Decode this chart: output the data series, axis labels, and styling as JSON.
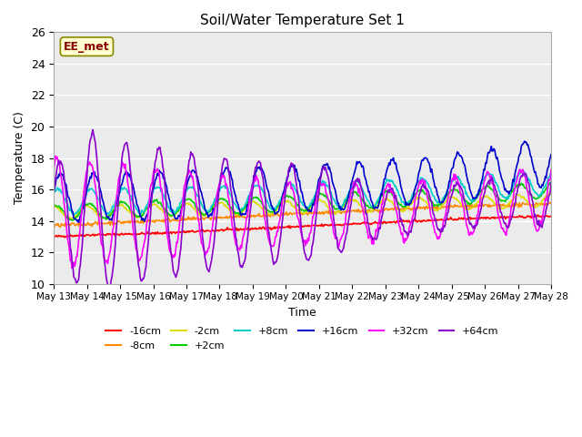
{
  "title": "Soil/Water Temperature Set 1",
  "xlabel": "Time",
  "ylabel": "Temperature (C)",
  "ylim": [
    10,
    26
  ],
  "yticks": [
    10,
    12,
    14,
    16,
    18,
    20,
    22,
    24,
    26
  ],
  "x_tick_labels": [
    "May 13",
    "May 14",
    "May 15",
    "May 16",
    "May 17",
    "May 18",
    "May 19",
    "May 20",
    "May 21",
    "May 22",
    "May 23",
    "May 24",
    "May 25",
    "May 26",
    "May 27",
    "May 28"
  ],
  "legend_entries": [
    {
      "label": "-16cm",
      "color": "#ff0000"
    },
    {
      "label": "-8cm",
      "color": "#ff8800"
    },
    {
      "label": "-2cm",
      "color": "#dddd00"
    },
    {
      "label": "+2cm",
      "color": "#00cc00"
    },
    {
      "label": "+8cm",
      "color": "#00cccc"
    },
    {
      "label": "+16cm",
      "color": "#0000cc"
    },
    {
      "label": "+32cm",
      "color": "#ff00ff"
    },
    {
      "label": "+64cm",
      "color": "#8800cc"
    }
  ],
  "annotation_text": "EE_met",
  "bg_color": "#ebebeb",
  "fig_bg_color": "#ffffff"
}
